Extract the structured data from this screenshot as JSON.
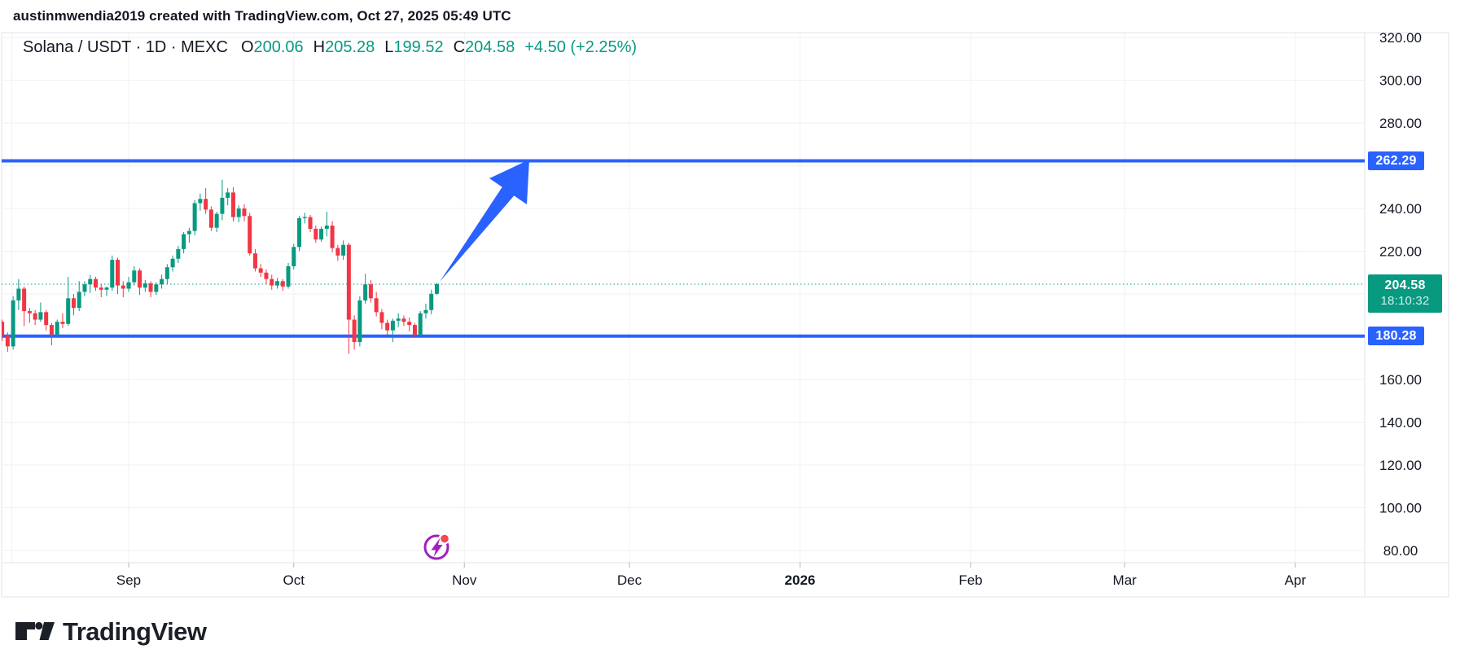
{
  "attribution": "austinmwendia2019 created with TradingView.com, Oct 27, 2025 05:49 UTC",
  "legend": {
    "symbol": "Solana / USDT",
    "separator": "·",
    "interval": "1D",
    "exchange": "MEXC",
    "symbol_line": "Solana / USDT · 1D · MEXC",
    "o_label": "O",
    "o_value": "200.06",
    "h_label": "H",
    "h_value": "205.28",
    "l_label": "L",
    "l_value": "199.52",
    "c_label": "C",
    "c_value": "204.58",
    "change": "+4.50 (+2.25%)"
  },
  "price_axis": {
    "visible_ticks": [
      "320.00",
      "300.00",
      "280.00",
      "240.00",
      "220.00",
      "160.00",
      "140.00",
      "120.00",
      "100.00",
      "80.00"
    ],
    "visible_tick_values": [
      320,
      300,
      280,
      240,
      220,
      160,
      140,
      120,
      100,
      80
    ],
    "badges": {
      "upper_line": "262.29",
      "last_price": "204.58",
      "countdown": "18:10:32",
      "lower_line": "180.28"
    }
  },
  "time_axis": {
    "labels": [
      "Sep",
      "Oct",
      "Nov",
      "Dec",
      "2026",
      "Feb",
      "Mar",
      "Apr"
    ]
  },
  "footer": {
    "logo_text": "TradingView"
  },
  "icons": {
    "chart_marker": "lightning-circle-icon",
    "logo_mark": "tradingview-mark"
  },
  "colors": {
    "up": "#089981",
    "down": "#F23645",
    "line_blue": "#2962FF",
    "text": "#131722",
    "grid": "#F0F1F3",
    "border": "#E0E3EB",
    "marker_purple": "#A020C0",
    "marker_dot_red": "#F5484F",
    "last_price_badge": "#089981"
  },
  "chart_data": {
    "type": "candlestick",
    "title": "Solana / USDT · 1D · MEXC",
    "last_candle": {
      "open": 200.06,
      "high": 205.28,
      "low": 199.52,
      "close": 204.58,
      "change": "+4.50 (+2.25%)"
    },
    "current_price": 204.58,
    "countdown": "18:10:32",
    "y_axis": {
      "min": 58,
      "max": 324,
      "tick_step": 20,
      "ticks": [
        80,
        100,
        120,
        140,
        160,
        180,
        200,
        220,
        240,
        260,
        280,
        300,
        320
      ],
      "hidden_tick_labels": [
        260,
        200,
        180
      ]
    },
    "x_axis": {
      "month_labels": [
        "Sep",
        "Oct",
        "Nov",
        "Dec",
        "2026",
        "Feb",
        "Mar",
        "Apr"
      ],
      "month_day_offsets": [
        0,
        30,
        61,
        91,
        122,
        153,
        181,
        212
      ],
      "data_range": "Aug 9 - Oct 27, 2025",
      "axis_extends_to": "Apr 2026"
    },
    "horizontal_levels": [
      {
        "label": "262.29",
        "value": 262.29,
        "color": "#2962FF",
        "style": "solid"
      },
      {
        "label": "180.28",
        "value": 180.28,
        "color": "#2962FF",
        "style": "solid"
      },
      {
        "label": "204.58",
        "value": 204.58,
        "color": "#089981",
        "style": "dotted-current-price"
      }
    ],
    "annotations": [
      {
        "type": "arrow-up-right",
        "color": "#2962FF",
        "from_price": 205,
        "to_price": 262.29,
        "meaning": "projected move from last close to 262.29 resistance"
      },
      {
        "type": "lightning-circle-marker",
        "color": "#A020C0",
        "position": "below last candle at chart bottom"
      }
    ],
    "candles_ohlc": [
      [
        187,
        188,
        178,
        180.5
      ],
      [
        180.5,
        182,
        173,
        175.5
      ],
      [
        175.5,
        199,
        174,
        197
      ],
      [
        197,
        207,
        192.5,
        202.5
      ],
      [
        202.5,
        203.5,
        185,
        192
      ],
      [
        192,
        193.5,
        186.5,
        191
      ],
      [
        191,
        192.5,
        185.5,
        188
      ],
      [
        188,
        196,
        187,
        191.5
      ],
      [
        191.5,
        192.5,
        183,
        185.5
      ],
      [
        185.5,
        186.5,
        176,
        181
      ],
      [
        181,
        188,
        179.5,
        187
      ],
      [
        187,
        191,
        184,
        186
      ],
      [
        186,
        208,
        185,
        198
      ],
      [
        198,
        200,
        190,
        193.5
      ],
      [
        193.5,
        206,
        192,
        201
      ],
      [
        201,
        206,
        199,
        204.5
      ],
      [
        204.5,
        209,
        200.5,
        207
      ],
      [
        207,
        208,
        201.5,
        203
      ],
      [
        203,
        204.5,
        198.5,
        202
      ],
      [
        202,
        203.5,
        199,
        203
      ],
      [
        203,
        218,
        201.5,
        216
      ],
      [
        216,
        217,
        200,
        204
      ],
      [
        204,
        206,
        198.5,
        202.5
      ],
      [
        202.5,
        208,
        201,
        205.5
      ],
      [
        205.5,
        213,
        204,
        211
      ],
      [
        211,
        212,
        199.5,
        203
      ],
      [
        203,
        206.5,
        201,
        205
      ],
      [
        205,
        206,
        198.5,
        201
      ],
      [
        201,
        205.5,
        199.5,
        204.5
      ],
      [
        204.5,
        209,
        202.5,
        207
      ],
      [
        207,
        214,
        204.5,
        212.5
      ],
      [
        212.5,
        218,
        210.5,
        216.5
      ],
      [
        216.5,
        222.5,
        214.5,
        221
      ],
      [
        221,
        229,
        219,
        228
      ],
      [
        228,
        231,
        224,
        229.5
      ],
      [
        229.5,
        244,
        227.5,
        242.5
      ],
      [
        242.5,
        247,
        239,
        244.5
      ],
      [
        244.5,
        249.5,
        237.5,
        239.5
      ],
      [
        239.5,
        241,
        229.5,
        231
      ],
      [
        231,
        238.5,
        229,
        237.5
      ],
      [
        237.5,
        253.5,
        234.5,
        245
      ],
      [
        245,
        249.5,
        241.5,
        247.5
      ],
      [
        247.5,
        250,
        234,
        236
      ],
      [
        236,
        241.5,
        233.5,
        240
      ],
      [
        240,
        242,
        234,
        236.5
      ],
      [
        236.5,
        238,
        218,
        219
      ],
      [
        219,
        221,
        210.5,
        212
      ],
      [
        212,
        214,
        208,
        210
      ],
      [
        210,
        211.5,
        204.5,
        207
      ],
      [
        207,
        209,
        202,
        204
      ],
      [
        204,
        207.5,
        202.5,
        206
      ],
      [
        206,
        207,
        201.5,
        203.5
      ],
      [
        203.5,
        214.5,
        202.5,
        213
      ],
      [
        213,
        223.5,
        211.5,
        222
      ],
      [
        222,
        236.5,
        220,
        235.5
      ],
      [
        235.5,
        238,
        233,
        236
      ],
      [
        236,
        237,
        229,
        230.5
      ],
      [
        230.5,
        232,
        224,
        225.5
      ],
      [
        225.5,
        231.5,
        224.5,
        230.5
      ],
      [
        230.5,
        238.5,
        227,
        232
      ],
      [
        232,
        234,
        219.5,
        221.5
      ],
      [
        221.5,
        223,
        215.5,
        218
      ],
      [
        218,
        225,
        216,
        223
      ],
      [
        223,
        224,
        172,
        188
      ],
      [
        188,
        190,
        174,
        177.5
      ],
      [
        177.5,
        199,
        175.5,
        197
      ],
      [
        197,
        209.5,
        195.5,
        204.5
      ],
      [
        204.5,
        206.5,
        196,
        198
      ],
      [
        198,
        201,
        189.5,
        191.5
      ],
      [
        191.5,
        193,
        183.5,
        186.5
      ],
      [
        186.5,
        188,
        181,
        183
      ],
      [
        183,
        188.5,
        177.5,
        187.5
      ],
      [
        187.5,
        191,
        184.5,
        188.5
      ],
      [
        188.5,
        190,
        185,
        187
      ],
      [
        187,
        189,
        182.5,
        185.5
      ],
      [
        185.5,
        186.5,
        179.5,
        181
      ],
      [
        181,
        192,
        180,
        191
      ],
      [
        191,
        195.5,
        188.5,
        192.5
      ],
      [
        192.5,
        202,
        190.5,
        200.06
      ],
      [
        200.06,
        205.28,
        199.52,
        204.58
      ]
    ]
  }
}
